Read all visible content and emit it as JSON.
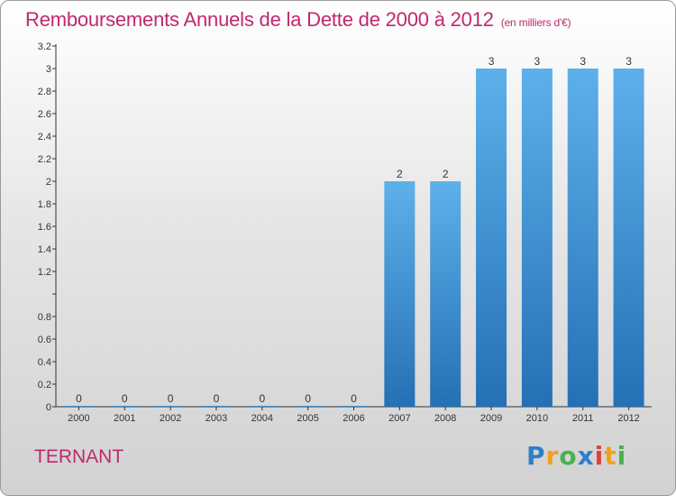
{
  "chart_data": {
    "type": "bar",
    "title": "Remboursements Annuels de la Dette de 2000 à 2012",
    "unit": "(en milliers d'€)",
    "categories": [
      "2000",
      "2001",
      "2002",
      "2003",
      "2004",
      "2005",
      "2006",
      "2007",
      "2008",
      "2009",
      "2010",
      "2011",
      "2012"
    ],
    "values": [
      0,
      0,
      0,
      0,
      0,
      0,
      0,
      2,
      2,
      3,
      3,
      3,
      3
    ],
    "value_labels": [
      "0",
      "0",
      "0",
      "0",
      "0",
      "0",
      "0",
      "2",
      "2",
      "3",
      "3",
      "3",
      "3"
    ],
    "yticks": [
      0,
      0.2,
      0.4,
      0.6,
      0.8,
      1.2,
      1.4,
      1.6,
      1.8,
      2,
      2.2,
      2.4,
      2.6,
      2.8,
      3,
      3.2
    ],
    "ylim": [
      0,
      3.2
    ],
    "grid": false,
    "bar_color": "#3a8fd2"
  },
  "location": "TERNANT",
  "logo": {
    "text": "Proxiti",
    "letters": [
      {
        "ch": "P",
        "color": "#2f7fc8"
      },
      {
        "ch": "r",
        "color": "#f0a020"
      },
      {
        "ch": "o",
        "color": "#4caf50"
      },
      {
        "ch": "x",
        "color": "#2f7fc8"
      },
      {
        "ch": "i",
        "color": "#e0403a"
      },
      {
        "ch": "t",
        "color": "#f0a020"
      },
      {
        "ch": "i",
        "color": "#4caf50"
      }
    ]
  }
}
